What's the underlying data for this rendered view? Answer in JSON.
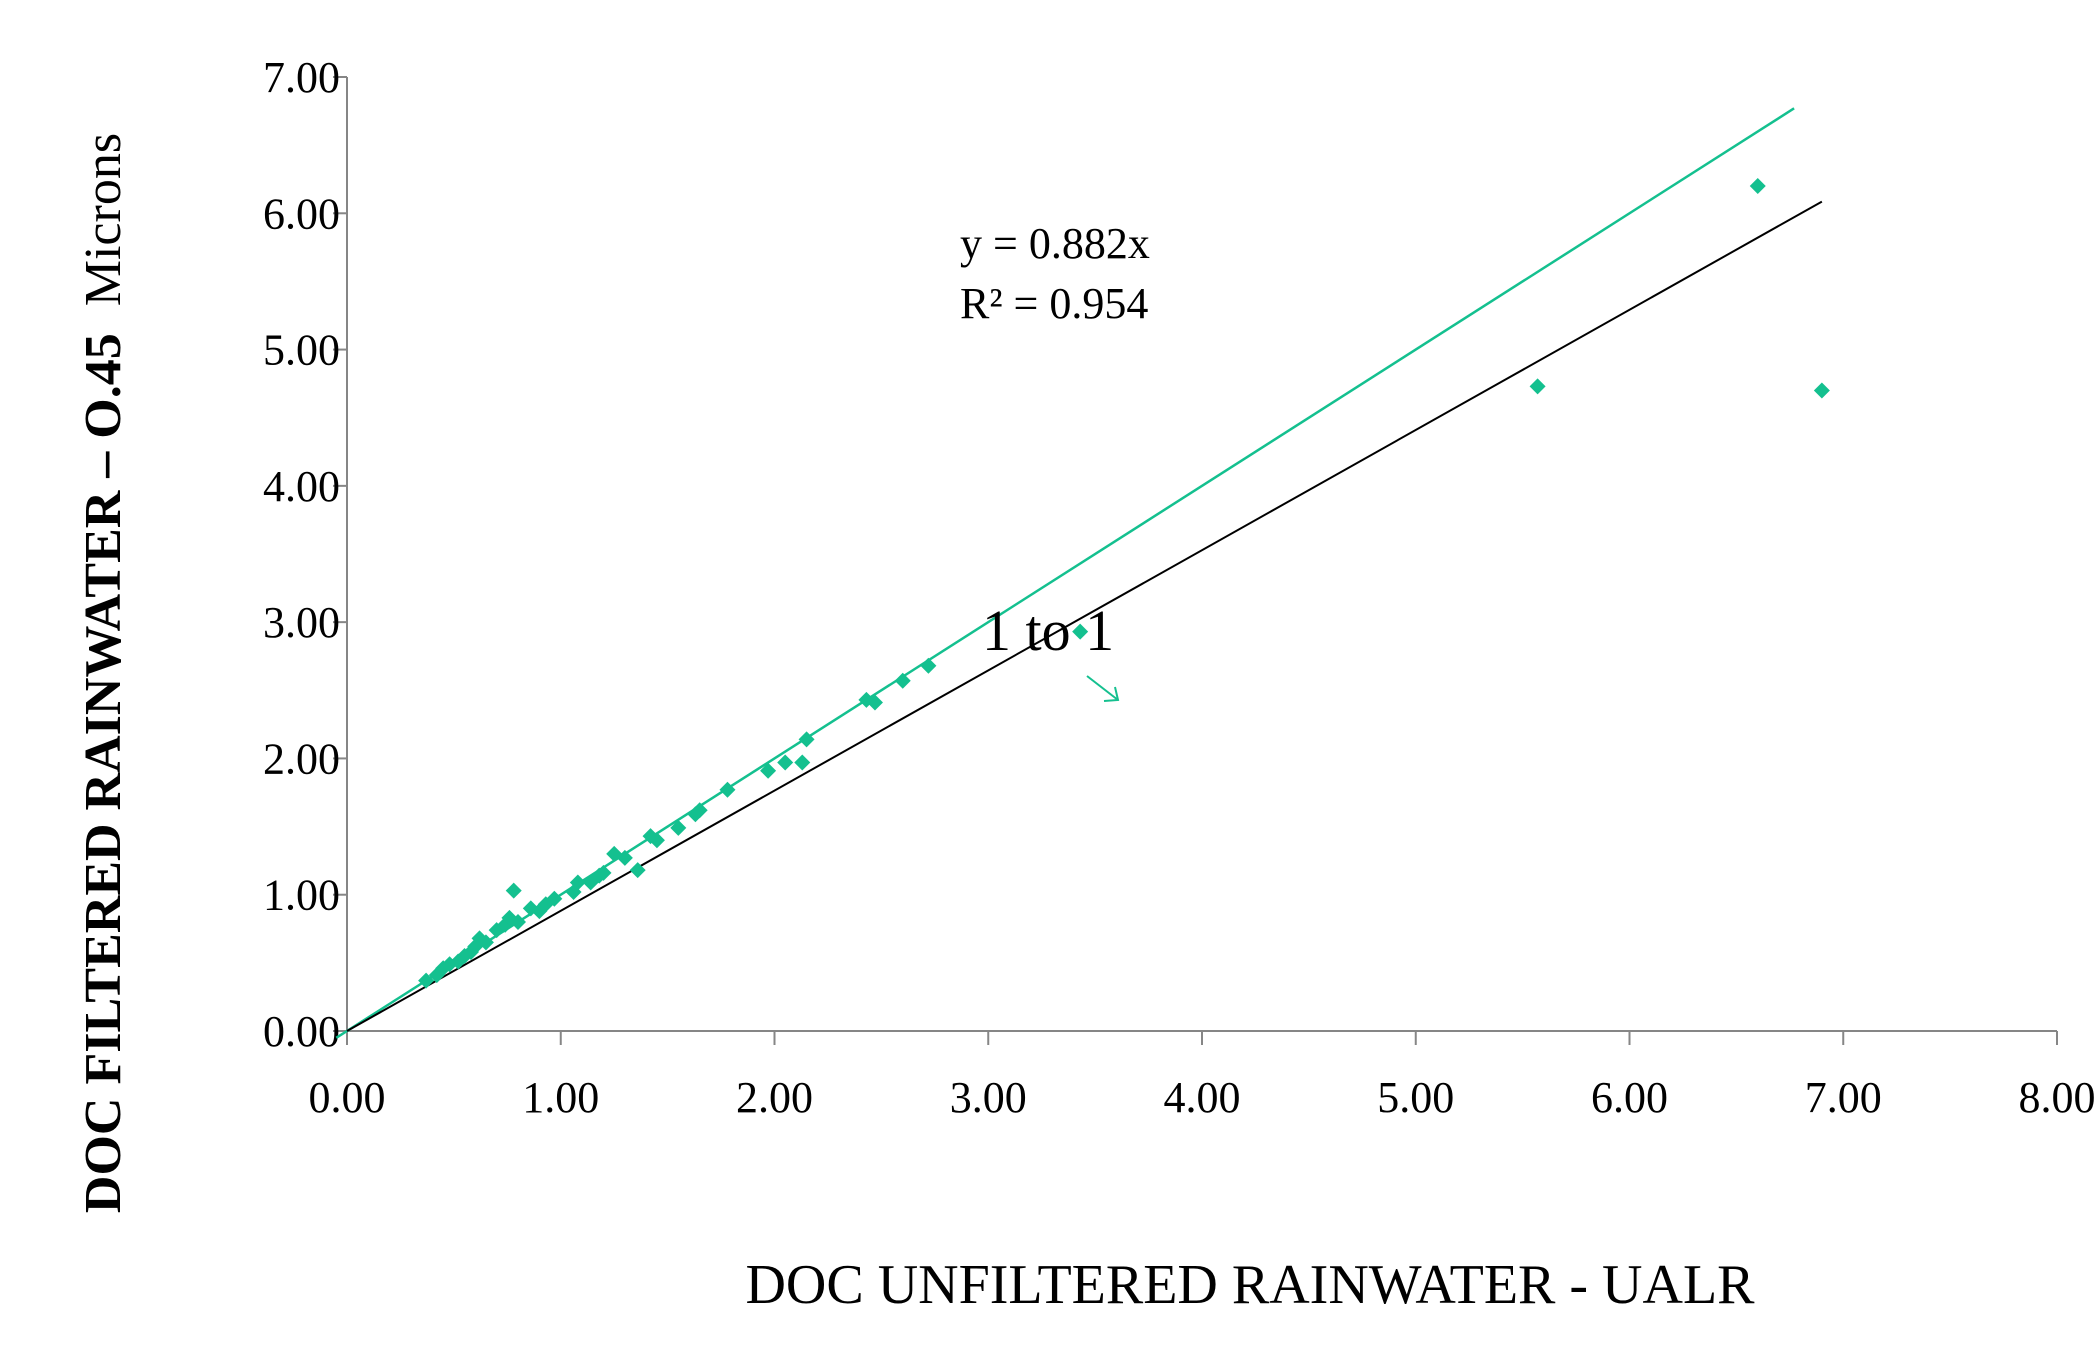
{
  "chart_data": {
    "type": "scatter",
    "xlabel": "DOC UNFILTERED RAINWATER - UALR",
    "ylabel_bold": "DOC FILTERED RAINWATER – O.45",
    "ylabel_tail": "Microns",
    "xlim": [
      0,
      8
    ],
    "ylim": [
      0,
      7
    ],
    "x_ticks": [
      "0.00",
      "1.00",
      "2.00",
      "3.00",
      "4.00",
      "5.00",
      "6.00",
      "7.00",
      "8.00"
    ],
    "y_ticks": [
      "0.00",
      "1.00",
      "2.00",
      "3.00",
      "4.00",
      "5.00",
      "6.00",
      "7.00"
    ],
    "grid": false,
    "series": [
      {
        "color": "#14c08f",
        "marker": "diamond",
        "points": [
          [
            0.37,
            0.37
          ],
          [
            0.42,
            0.41
          ],
          [
            0.45,
            0.46
          ],
          [
            0.48,
            0.49
          ],
          [
            0.52,
            0.51
          ],
          [
            0.55,
            0.55
          ],
          [
            0.58,
            0.58
          ],
          [
            0.6,
            0.62
          ],
          [
            0.62,
            0.68
          ],
          [
            0.65,
            0.65
          ],
          [
            0.7,
            0.74
          ],
          [
            0.74,
            0.78
          ],
          [
            0.76,
            0.83
          ],
          [
            0.78,
            1.03
          ],
          [
            0.8,
            0.8
          ],
          [
            0.86,
            0.9
          ],
          [
            0.9,
            0.88
          ],
          [
            0.93,
            0.93
          ],
          [
            0.97,
            0.97
          ],
          [
            1.06,
            1.02
          ],
          [
            1.08,
            1.09
          ],
          [
            1.14,
            1.09
          ],
          [
            1.18,
            1.14
          ],
          [
            1.2,
            1.16
          ],
          [
            1.25,
            1.3
          ],
          [
            1.3,
            1.27
          ],
          [
            1.36,
            1.18
          ],
          [
            1.42,
            1.43
          ],
          [
            1.45,
            1.4
          ],
          [
            1.55,
            1.49
          ],
          [
            1.63,
            1.59
          ],
          [
            1.65,
            1.62
          ],
          [
            1.78,
            1.77
          ],
          [
            1.97,
            1.91
          ],
          [
            2.05,
            1.97
          ],
          [
            2.13,
            1.97
          ],
          [
            2.15,
            2.14
          ],
          [
            2.43,
            2.43
          ],
          [
            2.47,
            2.41
          ],
          [
            2.6,
            2.57
          ],
          [
            2.72,
            2.68
          ],
          [
            3.43,
            2.93
          ],
          [
            5.57,
            4.73
          ],
          [
            6.6,
            6.2
          ],
          [
            6.9,
            4.7
          ]
        ]
      }
    ],
    "trendline": {
      "slope": 0.882,
      "x_range": [
        0,
        6.9
      ],
      "color": "#000000"
    },
    "one_to_one_line": {
      "x_range": [
        -0.05,
        6.77
      ],
      "color": "#14c08f"
    },
    "annotations": {
      "equation": "y = 0.882x",
      "r_squared": "R² = 0.954",
      "one_to_one_label": "1 to 1"
    }
  }
}
